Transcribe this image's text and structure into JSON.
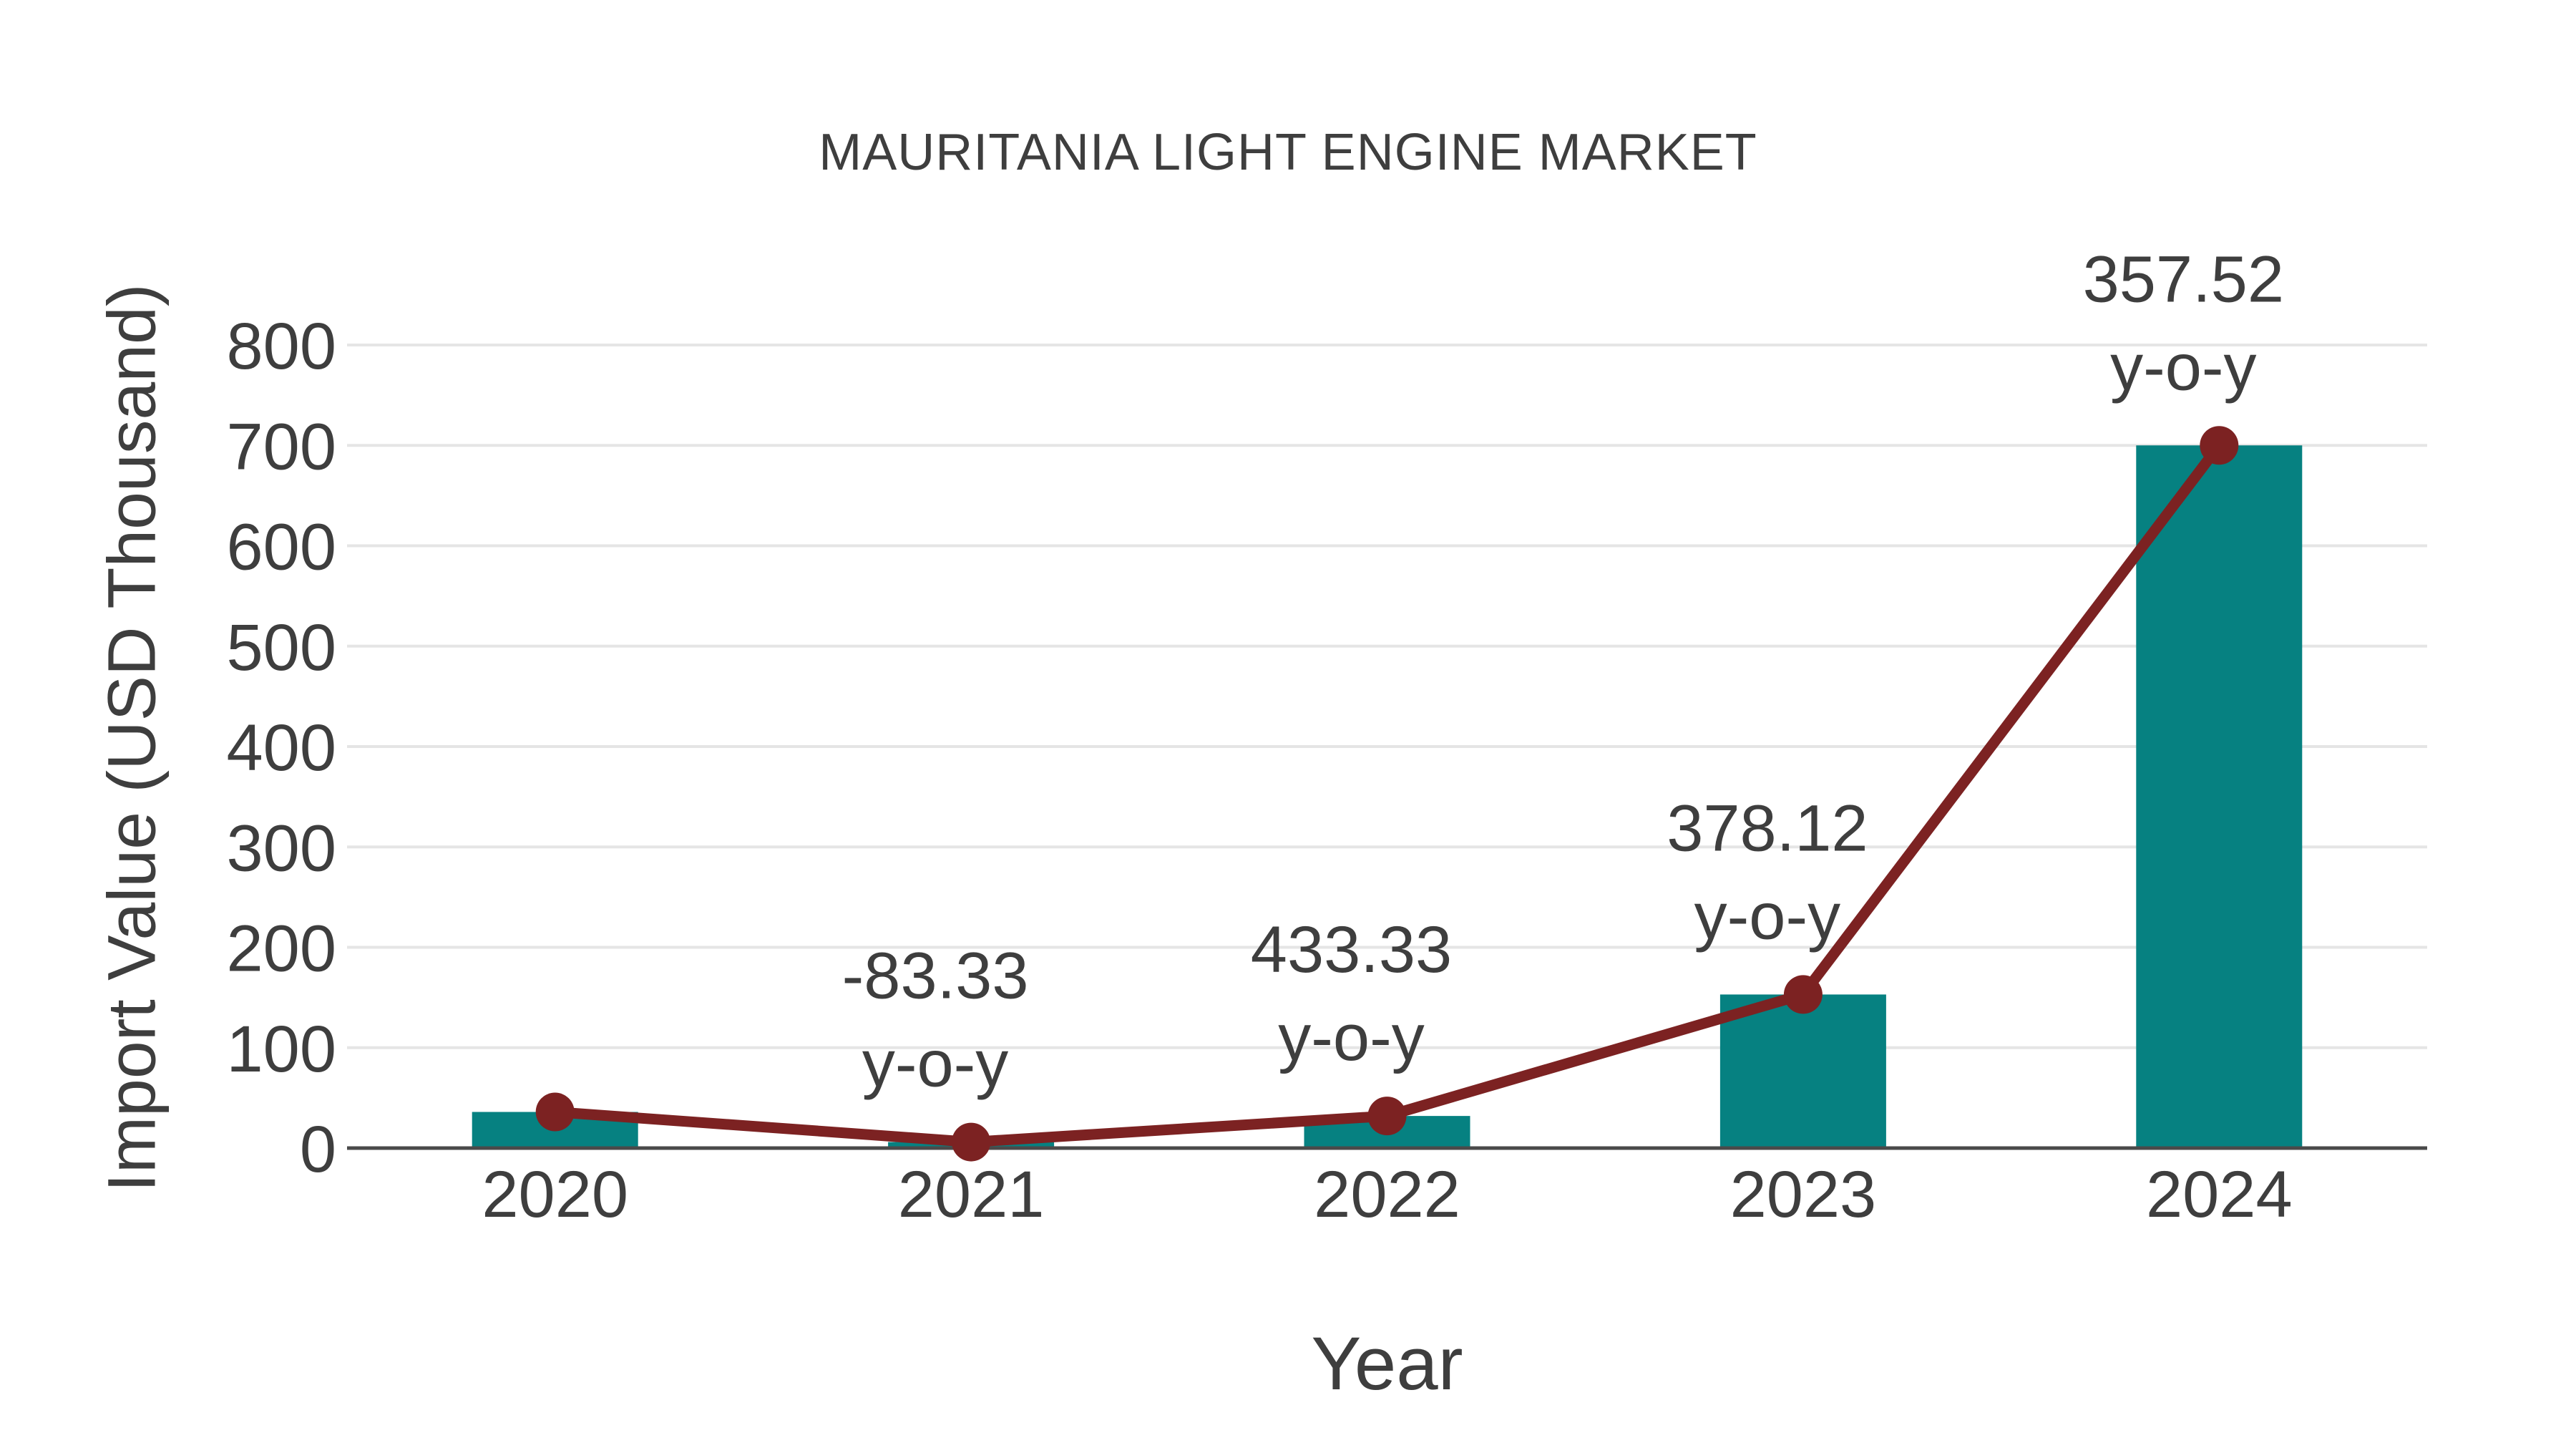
{
  "chart_data": {
    "type": "bar",
    "title": "MAURITANIA LIGHT ENGINE MARKET",
    "xlabel": "Year",
    "ylabel": "Import Value (USD Thousand)",
    "categories": [
      "2020",
      "2021",
      "2022",
      "2023",
      "2024"
    ],
    "series": [
      {
        "name": "import-value-bars",
        "type": "bar",
        "values": [
          36,
          6,
          32,
          153,
          700
        ]
      },
      {
        "name": "import-value-trend",
        "type": "line",
        "values": [
          36,
          6,
          32,
          153,
          700
        ]
      }
    ],
    "annotations": [
      {
        "category": "2021",
        "value_text": "-83.33",
        "suffix": "y-o-y"
      },
      {
        "category": "2022",
        "value_text": "433.33",
        "suffix": "y-o-y"
      },
      {
        "category": "2023",
        "value_text": "378.12",
        "suffix": "y-o-y"
      },
      {
        "category": "2024",
        "value_text": "357.52",
        "suffix": "y-o-y"
      }
    ],
    "yticks": [
      0,
      100,
      200,
      300,
      400,
      500,
      600,
      700,
      800
    ],
    "ylim": [
      0,
      800
    ],
    "grid": "horizontal",
    "legend": "none",
    "colors": {
      "bar": "#068181",
      "line": "#7c2222",
      "text": "#3e3e3e",
      "grid": "#e5e5e5",
      "axis": "#4a4a4a",
      "background": "#ffffff"
    }
  }
}
